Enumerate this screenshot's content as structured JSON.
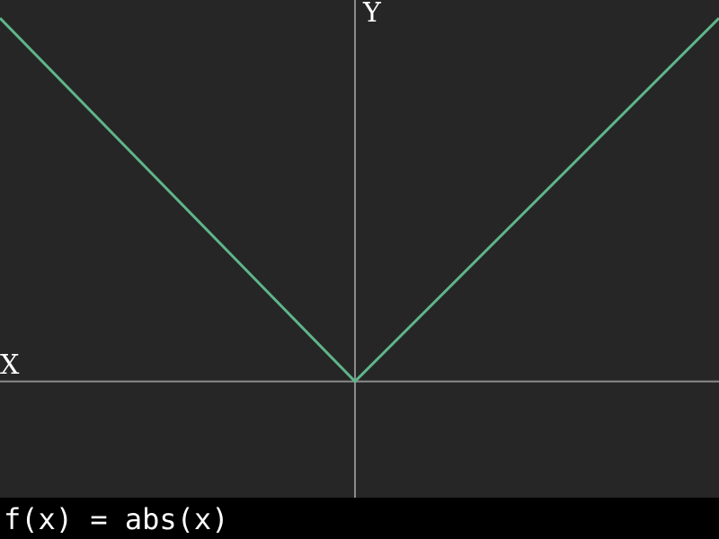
{
  "chart_data": {
    "type": "line",
    "title": "",
    "xlabel": "X",
    "ylabel": "Y",
    "xlim": [
      -1,
      1
    ],
    "ylim": [
      -0.32,
      1.05
    ],
    "grid": false,
    "series": [
      {
        "x": [
          -1,
          0,
          1
        ],
        "y": [
          1,
          0,
          1
        ]
      }
    ]
  },
  "formula": "f(x) = abs(x)",
  "colors": {
    "background": "#262626",
    "axes": "#8c8c8c",
    "line": "#5fb58a",
    "text": "#ffffff",
    "formula_bar": "#000000"
  }
}
